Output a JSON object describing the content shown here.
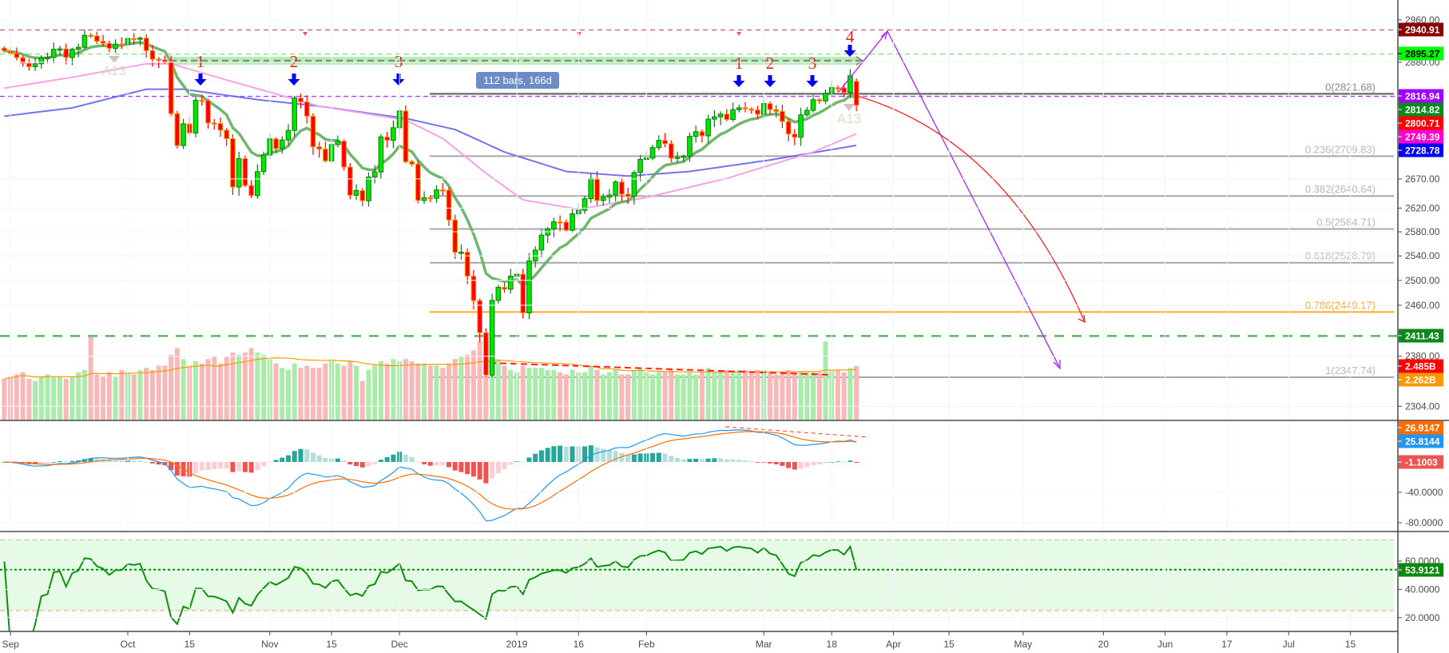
{
  "colors": {
    "up_body": "#00e600",
    "up_border": "#0a7a0a",
    "down_body": "#ff0000",
    "down_border": "#ff9800",
    "ema_fast": "#5fae5f",
    "ma_pink": "#f7a1e6",
    "ma_blue": "#5a5af0",
    "vol_up": "#a9eca9",
    "vol_down": "#f9b8b8",
    "vol_ma": "#ff9800",
    "macd": "#2196f3",
    "signal": "#ff6d00",
    "rsi": "#0f8f0f",
    "rsi_band": "#e6fbe6",
    "fib_line": "#a8a8a8",
    "fib_786": "#ffa726",
    "arrow_blue": "#0000ee",
    "projection_purple": "#aa33ff",
    "projection_red": "#ff2020",
    "measure_box": "#6b8cc7"
  },
  "chart_data": {
    "type": "candlestick",
    "price_scale": "log",
    "x": [
      "2018-08-31",
      "2018-09-04",
      "2018-09-05",
      "2018-09-06",
      "2018-09-07",
      "2018-09-10",
      "2018-09-11",
      "2018-09-12",
      "2018-09-13",
      "2018-09-14",
      "2018-09-17",
      "2018-09-18",
      "2018-09-19",
      "2018-09-20",
      "2018-09-21",
      "2018-09-24",
      "2018-09-25",
      "2018-09-26",
      "2018-09-27",
      "2018-09-28",
      "2018-10-01",
      "2018-10-02",
      "2018-10-03",
      "2018-10-04",
      "2018-10-05",
      "2018-10-08",
      "2018-10-09",
      "2018-10-10",
      "2018-10-11",
      "2018-10-12",
      "2018-10-15",
      "2018-10-16",
      "2018-10-17",
      "2018-10-18",
      "2018-10-19",
      "2018-10-22",
      "2018-10-23",
      "2018-10-24",
      "2018-10-25",
      "2018-10-26",
      "2018-10-29",
      "2018-10-30",
      "2018-10-31",
      "2018-11-01",
      "2018-11-02",
      "2018-11-05",
      "2018-11-06",
      "2018-11-07",
      "2018-11-08",
      "2018-11-09",
      "2018-11-12",
      "2018-11-13",
      "2018-11-14",
      "2018-11-15",
      "2018-11-16",
      "2018-11-19",
      "2018-11-20",
      "2018-11-21",
      "2018-11-23",
      "2018-11-26",
      "2018-11-27",
      "2018-11-28",
      "2018-11-29",
      "2018-11-30",
      "2018-12-03",
      "2018-12-04",
      "2018-12-06",
      "2018-12-07",
      "2018-12-10",
      "2018-12-11",
      "2018-12-12",
      "2018-12-13",
      "2018-12-14",
      "2018-12-17",
      "2018-12-18",
      "2018-12-19",
      "2018-12-20",
      "2018-12-21",
      "2018-12-24",
      "2018-12-26",
      "2018-12-27",
      "2018-12-28",
      "2018-12-31",
      "2019-01-02",
      "2019-01-03",
      "2019-01-04",
      "2019-01-07",
      "2019-01-08",
      "2019-01-09",
      "2019-01-10",
      "2019-01-11",
      "2019-01-14",
      "2019-01-15",
      "2019-01-16",
      "2019-01-17",
      "2019-01-18",
      "2019-01-22",
      "2019-01-23",
      "2019-01-24",
      "2019-01-25",
      "2019-01-28",
      "2019-01-29",
      "2019-01-30",
      "2019-01-31",
      "2019-02-01",
      "2019-02-04",
      "2019-02-05",
      "2019-02-06",
      "2019-02-07",
      "2019-02-08",
      "2019-02-11",
      "2019-02-12",
      "2019-02-13",
      "2019-02-14",
      "2019-02-15",
      "2019-02-19",
      "2019-02-20",
      "2019-02-21",
      "2019-02-22",
      "2019-02-25",
      "2019-02-26",
      "2019-02-27",
      "2019-02-28",
      "2019-03-01",
      "2019-03-04",
      "2019-03-05",
      "2019-03-06",
      "2019-03-07",
      "2019-03-08",
      "2019-03-11",
      "2019-03-12",
      "2019-03-13",
      "2019-03-14",
      "2019-03-15",
      "2019-03-18",
      "2019-03-19",
      "2019-03-20",
      "2019-03-21",
      "2019-03-22"
    ],
    "close": [
      2901.52,
      2896.72,
      2888.6,
      2878.05,
      2871.68,
      2877.13,
      2887.89,
      2888.92,
      2904.18,
      2904.98,
      2888.8,
      2904.31,
      2907.95,
      2930.75,
      2929.67,
      2919.37,
      2915.56,
      2905.97,
      2914.0,
      2913.98,
      2924.59,
      2923.43,
      2925.51,
      2901.61,
      2885.57,
      2884.43,
      2880.34,
      2785.68,
      2728.37,
      2767.13,
      2750.79,
      2809.92,
      2809.21,
      2768.78,
      2767.78,
      2755.88,
      2740.69,
      2656.1,
      2705.57,
      2658.69,
      2641.25,
      2682.63,
      2711.74,
      2740.37,
      2723.06,
      2738.31,
      2755.45,
      2813.89,
      2806.83,
      2781.01,
      2726.22,
      2722.18,
      2701.58,
      2730.2,
      2736.27,
      2690.73,
      2641.89,
      2649.93,
      2632.56,
      2673.45,
      2682.17,
      2743.79,
      2737.8,
      2760.17,
      2790.37,
      2700.06,
      2695.95,
      2633.08,
      2637.72,
      2636.78,
      2651.07,
      2650.54,
      2599.95,
      2545.94,
      2546.16,
      2506.96,
      2467.42,
      2416.62,
      2351.1,
      2467.7,
      2488.83,
      2485.74,
      2506.85,
      2510.03,
      2447.89,
      2531.94,
      2549.69,
      2574.41,
      2584.96,
      2596.64,
      2596.26,
      2582.61,
      2610.3,
      2616.1,
      2635.96,
      2670.71,
      2632.9,
      2638.7,
      2642.33,
      2664.76,
      2643.85,
      2640.0,
      2681.05,
      2704.1,
      2706.53,
      2724.87,
      2737.7,
      2731.61,
      2706.05,
      2707.88,
      2709.8,
      2744.73,
      2753.03,
      2745.73,
      2775.6,
      2779.76,
      2784.7,
      2774.88,
      2792.67,
      2796.11,
      2793.9,
      2792.38,
      2784.49,
      2803.69,
      2792.81,
      2789.65,
      2771.45,
      2748.93,
      2743.07,
      2783.3,
      2791.52,
      2810.92,
      2808.48,
      2822.48,
      2832.94,
      2832.57,
      2824.23,
      2854.88,
      2800.71
    ],
    "volume_billions": [
      1.9,
      2.0,
      2.1,
      2.2,
      1.9,
      1.8,
      2.0,
      2.1,
      2.0,
      2.0,
      1.9,
      2.0,
      2.2,
      2.3,
      3.8,
      2.1,
      2.0,
      2.2,
      2.0,
      2.3,
      2.2,
      2.1,
      2.3,
      2.4,
      2.3,
      2.5,
      2.5,
      3.0,
      3.3,
      2.8,
      2.5,
      2.7,
      2.6,
      2.8,
      2.9,
      2.6,
      2.9,
      3.1,
      3.0,
      3.1,
      3.3,
      3.1,
      3.0,
      2.8,
      2.6,
      2.4,
      2.3,
      2.6,
      2.4,
      2.5,
      2.4,
      2.4,
      2.6,
      2.8,
      2.6,
      2.5,
      2.7,
      2.5,
      1.8,
      2.3,
      2.5,
      2.7,
      2.6,
      2.8,
      2.7,
      2.8,
      2.7,
      2.6,
      2.6,
      2.5,
      2.5,
      2.4,
      2.6,
      2.8,
      2.9,
      3.0,
      3.2,
      3.6,
      2.0,
      3.0,
      2.8,
      2.5,
      2.3,
      2.2,
      2.5,
      2.4,
      2.4,
      2.4,
      2.3,
      2.3,
      2.2,
      2.1,
      2.3,
      2.2,
      2.2,
      2.5,
      2.3,
      2.1,
      2.2,
      2.3,
      2.1,
      2.1,
      2.3,
      2.4,
      2.2,
      2.1,
      2.2,
      2.2,
      2.3,
      2.1,
      2.1,
      2.2,
      2.1,
      2.2,
      2.4,
      2.2,
      2.2,
      2.3,
      2.2,
      2.3,
      2.3,
      2.2,
      2.3,
      2.3,
      2.2,
      2.1,
      2.2,
      2.3,
      2.2,
      2.2,
      2.2,
      2.2,
      2.2,
      3.6,
      2.3,
      2.3,
      2.2,
      2.4,
      2.485
    ],
    "ma_pink": [
      [
        "2018-08-31",
        2832
      ],
      [
        "2018-09-18",
        2852
      ],
      [
        "2018-10-04",
        2877
      ],
      [
        "2018-10-10",
        2877
      ],
      [
        "2018-10-23",
        2847
      ],
      [
        "2018-11-13",
        2799
      ],
      [
        "2018-12-04",
        2774
      ],
      [
        "2018-12-13",
        2741
      ],
      [
        "2018-12-24",
        2680
      ],
      [
        "2019-01-03",
        2634
      ],
      [
        "2019-01-16",
        2618
      ],
      [
        "2019-02-01",
        2638
      ],
      [
        "2019-02-21",
        2671
      ],
      [
        "2019-03-13",
        2717
      ],
      [
        "2019-03-22",
        2749.39
      ]
    ],
    "ma_blue": [
      [
        "2018-08-31",
        2781
      ],
      [
        "2018-09-18",
        2796
      ],
      [
        "2018-10-04",
        2830
      ],
      [
        "2018-10-12",
        2830
      ],
      [
        "2018-10-30",
        2811
      ],
      [
        "2018-11-13",
        2799
      ],
      [
        "2018-12-04",
        2777
      ],
      [
        "2018-12-17",
        2757
      ],
      [
        "2018-12-28",
        2717
      ],
      [
        "2019-01-14",
        2683
      ],
      [
        "2019-01-29",
        2675
      ],
      [
        "2019-02-12",
        2683
      ],
      [
        "2019-03-04",
        2703
      ],
      [
        "2019-03-22",
        2728.78
      ]
    ],
    "fib_levels": [
      {
        "label": "0(2821.68)",
        "price": 2821.68
      },
      {
        "label": "0.236(2709.83)",
        "price": 2709.83
      },
      {
        "label": "0.382(2640.64)",
        "price": 2640.64
      },
      {
        "label": "0.5(2584.71)",
        "price": 2584.71
      },
      {
        "label": "0.618(2528.79)",
        "price": 2528.79
      },
      {
        "label": "0.786(2449.17)",
        "price": 2449.17
      },
      {
        "label": "1(2347.74)",
        "price": 2347.74
      }
    ],
    "horizontal_levels": {
      "resistance_red": 2940.91,
      "resistance_green": 2895.27,
      "purple_dashed": 2816.94,
      "support_green": 2411.43
    },
    "measure_label": "112 bars, 166d",
    "wave_labels": [
      "1",
      "2",
      "3",
      "1",
      "2",
      "3",
      "4"
    ],
    "markers": [
      "A13",
      "A13"
    ],
    "price_axis_ticks": [
      "2960.00",
      "2880.00",
      "2670.00",
      "2620.00",
      "2580.00",
      "2540.00",
      "2500.00",
      "2460.00",
      "2380.00",
      "2304.00"
    ],
    "macd_axis_ticks": [
      "-40.0000",
      "-80.0000"
    ],
    "rsi_axis_ticks": [
      "60.0000",
      "40.0000",
      "20.0000"
    ],
    "rsi_bands": [
      75,
      25
    ],
    "time_ticks": [
      "Sep",
      "Oct",
      "15",
      "Nov",
      "15",
      "Dec",
      "2019",
      "16",
      "Feb",
      "Mar",
      "18",
      "Apr",
      "15",
      "May",
      "20",
      "Jun",
      "17",
      "Jul",
      "15"
    ],
    "last_values": {
      "resistance_red": "2940.91",
      "resistance_green": "2895.27",
      "purple_level": "2816.94",
      "ema_fast": "2814.82",
      "close": "2800.71",
      "ma_pink": "2749.39",
      "ma_blue": "2728.78",
      "support_green": "2411.43",
      "volume": "2.485B",
      "volume_ma": "2.262B",
      "macd_signal": "26.9147",
      "macd": "25.8144",
      "macd_hist": "-1.1003",
      "rsi": "53.9121"
    }
  }
}
